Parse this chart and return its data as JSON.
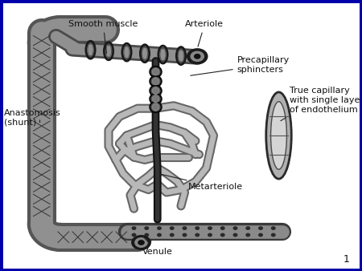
{
  "bg_color": "#f5f5f5",
  "border_color": "#0000aa",
  "border_lw": 5,
  "slide_number": "1",
  "label_fontsize": 8,
  "label_color": "#111111",
  "labels": {
    "smooth_muscle": {
      "text": "Smooth muscle",
      "xt": 0.285,
      "yt": 0.895,
      "xa": 0.295,
      "ya": 0.795
    },
    "arteriole": {
      "text": "Arteriole",
      "xt": 0.565,
      "yt": 0.895,
      "xa": 0.545,
      "ya": 0.82
    },
    "precapillary": {
      "text": "Precapillary\nsphincters",
      "xt": 0.655,
      "yt": 0.76,
      "xa": 0.52,
      "ya": 0.72
    },
    "anastomosis": {
      "text": "Anastomosis\n(shunt)",
      "xt": 0.01,
      "yt": 0.565,
      "xa": 0.11,
      "ya": 0.54
    },
    "true_cap": {
      "text": "True capillary\nwith single layer\nof endothelium",
      "xt": 0.8,
      "yt": 0.63,
      "xa": 0.77,
      "ya": 0.55
    },
    "metarteriole": {
      "text": "Metarteriole",
      "xt": 0.52,
      "yt": 0.31,
      "xa": 0.435,
      "ya": 0.36
    },
    "venule": {
      "text": "Venule",
      "xt": 0.435,
      "yt": 0.085,
      "xa": 0.39,
      "ya": 0.135
    }
  }
}
